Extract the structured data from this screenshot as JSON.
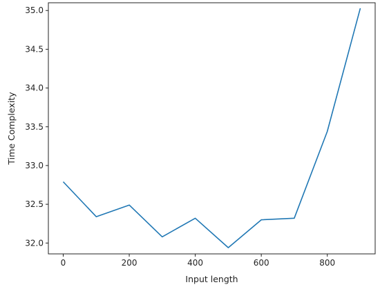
{
  "chart_data": {
    "type": "line",
    "title": "",
    "xlabel": "Input length",
    "ylabel": "Time Complexity",
    "xlim": [
      -45,
      945
    ],
    "ylim": [
      31.86,
      35.1
    ],
    "xticks": [
      0,
      200,
      400,
      600,
      800
    ],
    "xtick_labels": [
      "0",
      "200",
      "400",
      "600",
      "800"
    ],
    "yticks": [
      32.0,
      32.5,
      33.0,
      33.5,
      34.0,
      34.5,
      35.0
    ],
    "ytick_labels": [
      "32.0",
      "32.5",
      "33.0",
      "33.5",
      "34.0",
      "34.5",
      "35.0"
    ],
    "grid": false,
    "series": [
      {
        "color": "#1f77b4",
        "x": [
          0,
          100,
          200,
          300,
          400,
          500,
          600,
          700,
          800,
          900
        ],
        "y": [
          32.79,
          32.34,
          32.49,
          32.08,
          32.32,
          31.94,
          32.3,
          32.32,
          33.44,
          35.03
        ]
      }
    ]
  }
}
